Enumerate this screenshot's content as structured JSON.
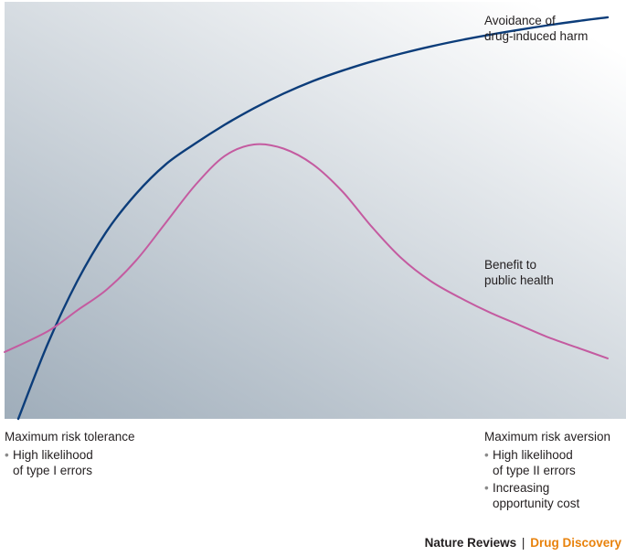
{
  "chart_data": {
    "type": "line",
    "x_axis": {
      "left_label": "Maximum risk tolerance",
      "left_notes": [
        "High likelihood\nof type I errors"
      ],
      "right_label": "Maximum risk aversion",
      "right_notes": [
        "High likelihood\nof type II errors",
        "Increasing\nopportunity cost"
      ]
    },
    "x": [
      0,
      0.05,
      0.1,
      0.15,
      0.2,
      0.25,
      0.3,
      0.35,
      0.4,
      0.45,
      0.5,
      0.55,
      0.6,
      0.65,
      0.7,
      0.75,
      0.8,
      0.85,
      0.9,
      0.95,
      1.0
    ],
    "series": [
      {
        "name": "Avoidance of drug-induced harm",
        "label_lines": [
          "Avoidance of",
          "drug-induced harm"
        ],
        "color": "#0c3d7a",
        "values": [
          0.0,
          0.18,
          0.33,
          0.45,
          0.54,
          0.61,
          0.66,
          0.705,
          0.745,
          0.78,
          0.81,
          0.835,
          0.857,
          0.876,
          0.893,
          0.908,
          0.921,
          0.933,
          0.944,
          0.954,
          0.963
        ]
      },
      {
        "name": "Benefit to public health",
        "label_lines": [
          "Benefit to",
          "public health"
        ],
        "color": "#c45ba0",
        "values": [
          0.16,
          0.21,
          0.26,
          0.31,
          0.38,
          0.47,
          0.56,
          0.63,
          0.658,
          0.648,
          0.61,
          0.545,
          0.46,
          0.385,
          0.33,
          0.29,
          0.255,
          0.225,
          0.195,
          0.17,
          0.145
        ]
      }
    ],
    "background": {
      "from": "#9fadba",
      "to": "#ffffff"
    },
    "grid": false,
    "axes_ticks": false
  },
  "credit": {
    "journal": "Nature Reviews",
    "separator": "|",
    "subject": "Drug Discovery",
    "subject_color": "#e8820c"
  }
}
